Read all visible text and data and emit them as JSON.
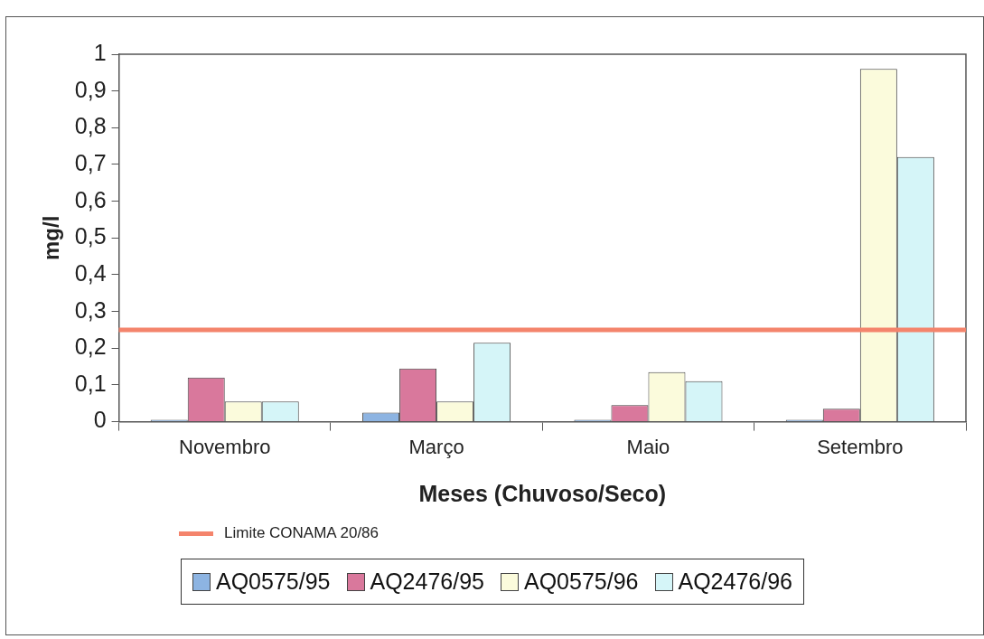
{
  "chart_data": {
    "type": "bar",
    "xlabel": "Meses (Chuvoso/Seco)",
    "ylabel": "mg/l",
    "categories": [
      "Novembro",
      "Março",
      "Maio",
      "Setembro"
    ],
    "series": [
      {
        "name": "AQ0575/95",
        "color": "#8db4e2",
        "values": [
          0.005,
          0.025,
          0.005,
          0.005
        ]
      },
      {
        "name": "AQ2476/95",
        "color": "#d9789c",
        "values": [
          0.12,
          0.145,
          0.045,
          0.035
        ]
      },
      {
        "name": "AQ0575/96",
        "color": "#fbfbdc",
        "values": [
          0.055,
          0.055,
          0.135,
          0.96
        ]
      },
      {
        "name": "AQ2476/96",
        "color": "#d5f5f8",
        "values": [
          0.055,
          0.215,
          0.11,
          0.72
        ]
      }
    ],
    "ylim": [
      0,
      1
    ],
    "yticks": [
      0,
      {
        "value": 0.1,
        "label": "0,1"
      },
      {
        "value": 0.2,
        "label": "0,2"
      },
      {
        "value": 0.3,
        "label": "0,3"
      },
      {
        "value": 0.4,
        "label": "0,4"
      },
      {
        "value": 0.5,
        "label": "0,5"
      },
      {
        "value": 0.6,
        "label": "0,6"
      },
      {
        "value": 0.7,
        "label": "0,7"
      },
      {
        "value": 0.8,
        "label": "0,8"
      },
      {
        "value": 0.9,
        "label": "0,9"
      },
      1
    ],
    "ref_lines": [
      {
        "axis": "y",
        "value": 0.25,
        "label": "Limite CONAMA 20/86",
        "color": "#f4846c"
      }
    ],
    "grid": false,
    "legend": "bottom"
  }
}
